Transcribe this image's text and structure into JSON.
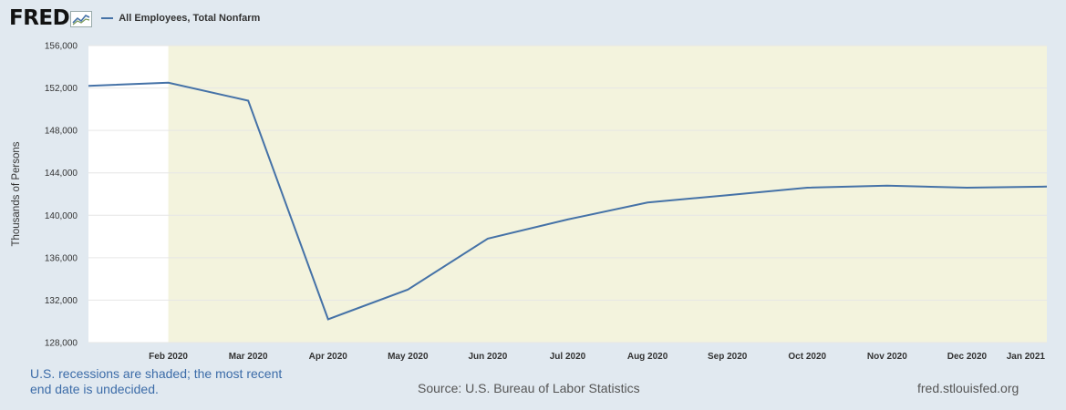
{
  "header": {
    "logo_text": "FRED",
    "legend_label": "All Employees, Total Nonfarm"
  },
  "colors": {
    "series": "#4572a7",
    "recession_shade": "#f3f3dd",
    "plot_bg": "#ffffff",
    "page_bg": "#e1e9f0"
  },
  "icons": {
    "logo": "fred-chart-logo-icon"
  },
  "chart_data": {
    "type": "line",
    "title": "",
    "xlabel": "",
    "ylabel": "Thousands of Persons",
    "ylim": [
      128000,
      156000
    ],
    "yticks": [
      "128,000",
      "132,000",
      "136,000",
      "140,000",
      "144,000",
      "148,000",
      "152,000",
      "156,000"
    ],
    "ytick_values": [
      128000,
      132000,
      136000,
      140000,
      144000,
      148000,
      152000,
      156000
    ],
    "xticks": [
      "Feb 2020",
      "Mar 2020",
      "Apr 2020",
      "May 2020",
      "Jun 2020",
      "Jul 2020",
      "Aug 2020",
      "Sep 2020",
      "Oct 2020",
      "Nov 2020",
      "Dec 2020",
      "Jan 2021"
    ],
    "x": [
      "2020-01",
      "2020-02",
      "2020-03",
      "2020-04",
      "2020-05",
      "2020-06",
      "2020-07",
      "2020-08",
      "2020-09",
      "2020-10",
      "2020-11",
      "2020-12",
      "2021-01"
    ],
    "series": [
      {
        "values": [
          152200,
          152500,
          150800,
          130200,
          133000,
          137800,
          139600,
          141200,
          141900,
          142600,
          142800,
          142600,
          142700
        ]
      }
    ],
    "recession_start": "2020-02",
    "grid": true
  },
  "footer": {
    "note": "U.S. recessions are shaded; the most recent end date is undecided.",
    "source": "Source: U.S. Bureau of Labor Statistics",
    "url": "fred.stlouisfed.org"
  }
}
